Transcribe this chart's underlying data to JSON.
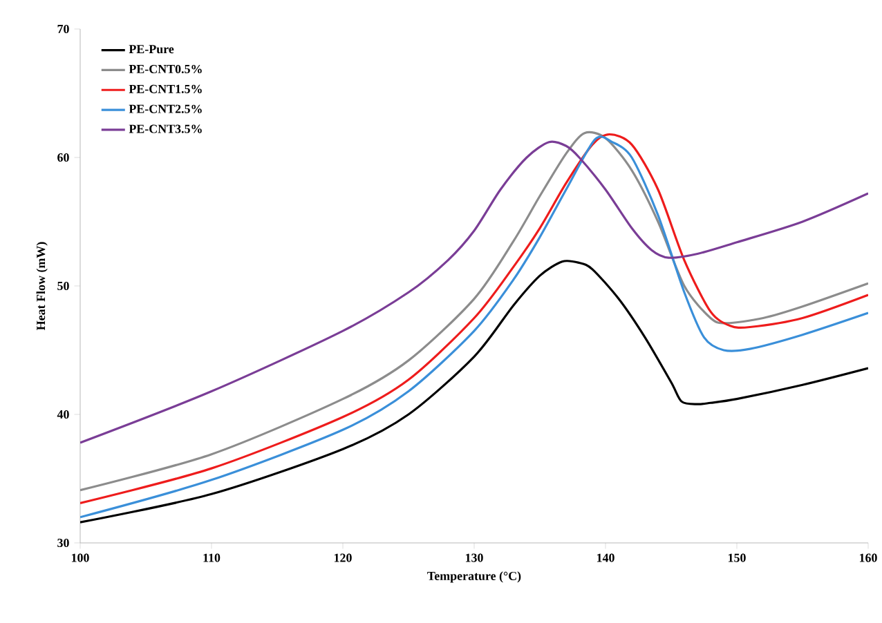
{
  "chart_data": {
    "type": "line",
    "xlabel": "Temperature (°C)",
    "ylabel": "Heat Flow (mW)",
    "xlim": [
      100,
      160
    ],
    "ylim": [
      30,
      70
    ],
    "xticks": [
      100,
      110,
      120,
      130,
      140,
      150,
      160
    ],
    "yticks": [
      30,
      40,
      50,
      60,
      70
    ],
    "grid": false,
    "legend": "top left",
    "marker": "none",
    "line_style": "solid",
    "series": [
      {
        "name": "PE-Pure",
        "color": "#000000",
        "x": [
          100,
          110,
          120,
          125,
          130,
          133,
          135,
          136.7,
          138,
          139,
          141,
          143,
          145,
          145.8,
          147,
          148,
          150,
          155,
          160
        ],
        "values": [
          31.6,
          33.8,
          37.3,
          40,
          44.5,
          48.5,
          50.8,
          51.9,
          51.8,
          51.3,
          49,
          46,
          42.5,
          41,
          40.8,
          40.9,
          41.2,
          42.3,
          43.6
        ]
      },
      {
        "name": "PE-CNT0.5%",
        "color": "#8c8c8c",
        "x": [
          100,
          110,
          120,
          125,
          130,
          133,
          135,
          137,
          138.4,
          140,
          142,
          144,
          146,
          148,
          149.2,
          152,
          155,
          160
        ],
        "values": [
          34.1,
          36.9,
          41.2,
          44.2,
          49,
          53.5,
          57,
          60.3,
          61.9,
          61.5,
          59,
          55,
          50,
          47.5,
          47.1,
          47.5,
          48.4,
          50.2
        ]
      },
      {
        "name": "PE-CNT1.5%",
        "color": "#ee1c1c",
        "x": [
          100,
          110,
          120,
          125,
          130,
          133,
          135,
          137,
          139,
          140.3,
          142,
          144,
          146,
          148,
          149.5,
          151,
          155,
          160
        ],
        "values": [
          33.1,
          35.8,
          39.8,
          42.7,
          47.5,
          51.5,
          54.5,
          58,
          61,
          61.8,
          61,
          57.5,
          52,
          48,
          46.9,
          46.8,
          47.5,
          49.3
        ]
      },
      {
        "name": "PE-CNT2.5%",
        "color": "#3a8fd9",
        "x": [
          100,
          110,
          120,
          125,
          130,
          133,
          135,
          137,
          139.2,
          140.5,
          142,
          144,
          146,
          147.5,
          149,
          151,
          155,
          160
        ],
        "values": [
          32,
          34.9,
          38.8,
          41.8,
          46.5,
          50.5,
          53.8,
          57.5,
          61.4,
          61.2,
          60,
          55.5,
          49.5,
          46,
          45,
          45.1,
          46.2,
          47.9
        ]
      },
      {
        "name": "PE-CNT3.5%",
        "color": "#7a3d96",
        "x": [
          100,
          110,
          120,
          125,
          128,
          130,
          132,
          134,
          135.7,
          137,
          138,
          140,
          142,
          143.5,
          144.8,
          147,
          150,
          155,
          160
        ],
        "values": [
          37.8,
          41.8,
          46.5,
          49.5,
          52,
          54.3,
          57.5,
          60,
          61.2,
          60.9,
          60,
          57.5,
          54.5,
          52.8,
          52.2,
          52.5,
          53.4,
          55,
          57.2
        ]
      }
    ]
  }
}
